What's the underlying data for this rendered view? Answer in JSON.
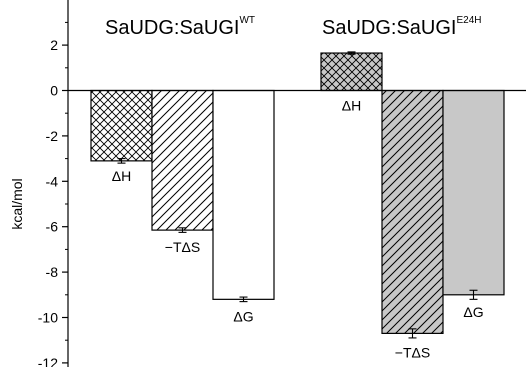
{
  "chart_data": {
    "type": "bar",
    "ylabel": "kcal/mol",
    "ylim": [
      -12,
      2.5
    ],
    "yticks": [
      2,
      0,
      -2,
      -4,
      -6,
      -8,
      -10,
      -12
    ],
    "grid": false,
    "groups": [
      {
        "title": "SaUDG:SaUGI",
        "title_sup": "WT",
        "bars": [
          {
            "label": "ΔH",
            "value": -3.1,
            "error": 0.1,
            "pattern": "crosshatch",
            "fill": "#ffffff"
          },
          {
            "label": "−TΔS",
            "value": -6.15,
            "error": 0.1,
            "pattern": "diagonal",
            "fill": "#ffffff"
          },
          {
            "label": "ΔG",
            "value": -9.2,
            "error": 0.1,
            "pattern": "none",
            "fill": "#ffffff"
          }
        ]
      },
      {
        "title": "SaUDG:SaUGI",
        "title_sup": "E24H",
        "bars": [
          {
            "label": "ΔH",
            "value": 1.65,
            "error": 0.05,
            "pattern": "crosshatch",
            "fill": "#c8c8c8"
          },
          {
            "label": "−TΔS",
            "value": -10.7,
            "error": 0.2,
            "pattern": "diagonal",
            "fill": "#c8c8c8"
          },
          {
            "label": "ΔG",
            "value": -9.0,
            "error": 0.2,
            "pattern": "none",
            "fill": "#c8c8c8"
          }
        ]
      }
    ]
  }
}
